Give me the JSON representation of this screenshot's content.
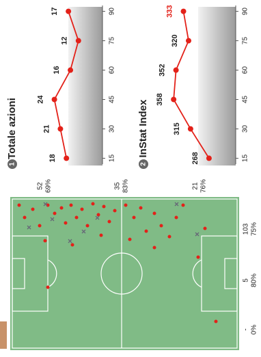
{
  "chart_data": [
    {
      "type": "line",
      "badge": "1",
      "title": "Totale azioni",
      "color": "#e32119",
      "x": [
        15,
        30,
        45,
        60,
        75,
        90
      ],
      "xlim": [
        12,
        93
      ],
      "xticks": [
        15,
        30,
        45,
        60,
        75,
        90
      ],
      "ylim": [
        0,
        30
      ],
      "series": [
        {
          "name": "Totale azioni",
          "color": "#e32119",
          "values": [
            18,
            21,
            24,
            16,
            12,
            17
          ]
        }
      ]
    },
    {
      "type": "line",
      "badge": "2",
      "title": "InStat Index",
      "color": "#e32119",
      "x": [
        15,
        30,
        45,
        60,
        75,
        90
      ],
      "xlim": [
        12,
        93
      ],
      "xticks": [
        15,
        30,
        45,
        60,
        75,
        90
      ],
      "ylim": [
        200,
        400
      ],
      "series": [
        {
          "name": "InStat Index",
          "color": "#e32119",
          "values": [
            268,
            315,
            358,
            352,
            320,
            333
          ]
        }
      ]
    }
  ],
  "pitch": {
    "top_zones": [
      {
        "count": "52",
        "percent": "69%"
      },
      {
        "count": "35",
        "percent": "83%"
      },
      {
        "count": "21",
        "percent": "76%"
      }
    ],
    "side_zones": [
      {
        "count": "103",
        "percent": "75%"
      },
      {
        "count": "5",
        "percent": "80%"
      },
      {
        "count": "-",
        "percent": "0%"
      }
    ]
  }
}
